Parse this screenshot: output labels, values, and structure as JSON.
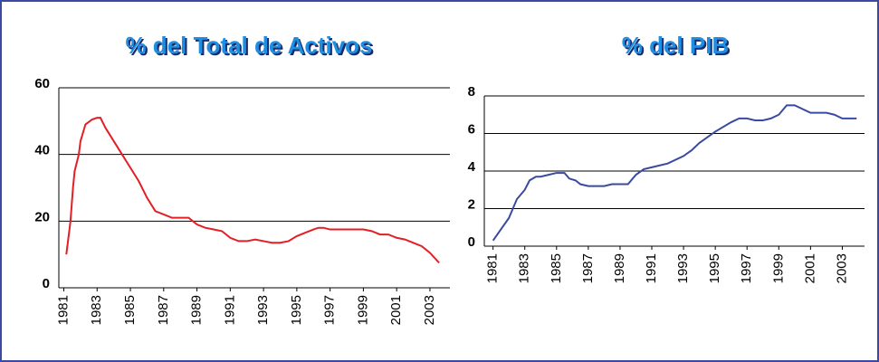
{
  "chart_data": [
    {
      "type": "line",
      "title": "% del Total de Activos",
      "x": [
        1981.15,
        1981.25,
        1981.4,
        1981.55,
        1981.65,
        1981.9,
        1982.0,
        1982.3,
        1982.7,
        1983.0,
        1983.2,
        1983.5,
        1984.0,
        1984.5,
        1985.0,
        1985.5,
        1986.0,
        1986.5,
        1987.0,
        1987.5,
        1988.0,
        1988.5,
        1989.0,
        1989.5,
        1990.0,
        1990.5,
        1991.0,
        1991.5,
        1992.0,
        1992.5,
        1993.0,
        1993.5,
        1994.0,
        1994.5,
        1995.0,
        1995.5,
        1996.0,
        1996.3,
        1996.6,
        1997.0,
        1998.0,
        1999.0,
        1999.5,
        2000.0,
        2000.5,
        2001.0,
        2001.5,
        2002.0,
        2002.5,
        2003.0,
        2003.55
      ],
      "series": [
        {
          "color": "#e41e26",
          "values": [
            10,
            14,
            20,
            30,
            35,
            40,
            44,
            49,
            50.5,
            51,
            51,
            48,
            44,
            40,
            36,
            32,
            27,
            23,
            22,
            21,
            21,
            21,
            19,
            18,
            17.5,
            17,
            15,
            14,
            14,
            14.5,
            14,
            13.5,
            13.5,
            14,
            15.5,
            16.5,
            17.5,
            18,
            18,
            17.5,
            17.5,
            17.5,
            17,
            16,
            16,
            15,
            14.5,
            13.5,
            12.5,
            10.5,
            7.5
          ]
        }
      ],
      "xlim": [
        1980.7,
        2004.2
      ],
      "xticks": [
        1981,
        1983,
        1985,
        1987,
        1989,
        1991,
        1993,
        1995,
        1997,
        1999,
        2001,
        2003
      ],
      "ylim": [
        0,
        60
      ],
      "yticks": [
        0,
        20,
        40,
        60
      ],
      "grid": true
    },
    {
      "type": "line",
      "title": "% del PIB",
      "x": [
        1981.0,
        1982.0,
        1982.5,
        1983.0,
        1983.3,
        1983.7,
        1984.0,
        1984.5,
        1985.0,
        1985.5,
        1985.8,
        1986.2,
        1986.5,
        1987.0,
        1988.0,
        1988.5,
        1989.0,
        1989.5,
        1990.0,
        1990.5,
        1991.0,
        1991.5,
        1992.0,
        1993.0,
        1993.5,
        1994.0,
        1994.5,
        1995.0,
        1996.0,
        1996.5,
        1997.0,
        1997.5,
        1998.0,
        1998.5,
        1999.0,
        1999.5,
        2000.0,
        2000.5,
        2001.0,
        2002.0,
        2002.5,
        2003.0,
        2003.9
      ],
      "series": [
        {
          "color": "#3a4aa0",
          "values": [
            0.3,
            1.5,
            2.5,
            3,
            3.5,
            3.7,
            3.7,
            3.8,
            3.9,
            3.9,
            3.6,
            3.5,
            3.3,
            3.2,
            3.2,
            3.3,
            3.3,
            3.3,
            3.8,
            4.1,
            4.2,
            4.3,
            4.4,
            4.8,
            5.1,
            5.5,
            5.8,
            6.1,
            6.6,
            6.8,
            6.8,
            6.7,
            6.7,
            6.8,
            7.0,
            7.5,
            7.5,
            7.3,
            7.1,
            7.1,
            7.0,
            6.8,
            6.8
          ]
        }
      ],
      "xlim": [
        1980.45,
        2004.4
      ],
      "xticks": [
        1981,
        1983,
        1985,
        1987,
        1989,
        1991,
        1993,
        1995,
        1997,
        1999,
        2001,
        2003
      ],
      "ylim": [
        0,
        8
      ],
      "yticks": [
        0,
        2,
        4,
        6,
        8
      ],
      "grid": true
    }
  ]
}
